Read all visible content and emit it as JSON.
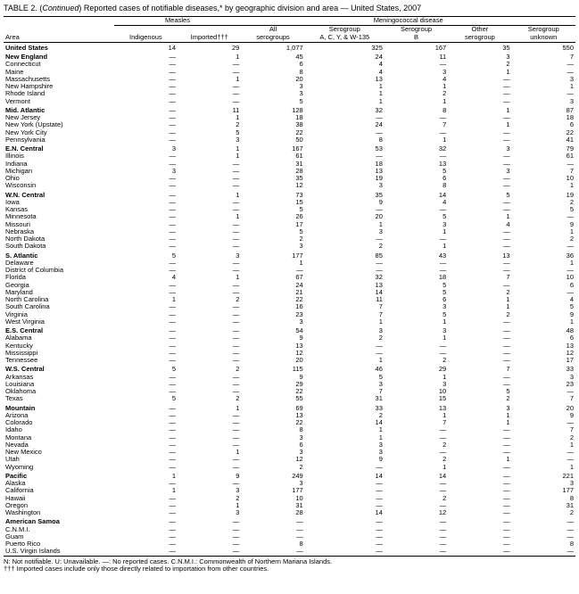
{
  "title_prefix": "TABLE 2. (",
  "title_cont": "Continued",
  "title_rest": ") Reported cases of notifiable diseases,* by geographic division and area — United States, 2007",
  "groups": {
    "measles": "Measles",
    "mening": "Meningococcal disease"
  },
  "headers": {
    "area": "Area",
    "indigenous": "Indigenous",
    "imported": "Imported†††",
    "all": "All\nserogroups",
    "seroA": "Serogroup\nA, C, Y, & W-135",
    "seroB": "Serogroup\nB",
    "other": "Other\nserogroup",
    "unknown": "Serogroup\nunknown"
  },
  "rows": [
    {
      "section": true,
      "area": "United States",
      "v": [
        "14",
        "29",
        "1,077",
        "325",
        "167",
        "35",
        "550"
      ]
    },
    {
      "section": true,
      "area": "New England",
      "v": [
        "—",
        "1",
        "45",
        "24",
        "11",
        "3",
        "7"
      ]
    },
    {
      "area": "Connecticut",
      "v": [
        "—",
        "—",
        "6",
        "4",
        "—",
        "2",
        "—"
      ]
    },
    {
      "area": "Maine",
      "v": [
        "—",
        "—",
        "8",
        "4",
        "3",
        "1",
        "—"
      ]
    },
    {
      "area": "Massachusetts",
      "v": [
        "—",
        "1",
        "20",
        "13",
        "4",
        "—",
        "3"
      ]
    },
    {
      "area": "New Hampshire",
      "v": [
        "—",
        "—",
        "3",
        "1",
        "1",
        "—",
        "1"
      ]
    },
    {
      "area": "Rhode Island",
      "v": [
        "—",
        "—",
        "3",
        "1",
        "2",
        "—",
        "—"
      ]
    },
    {
      "area": "Vermont",
      "v": [
        "—",
        "—",
        "5",
        "1",
        "1",
        "—",
        "3"
      ]
    },
    {
      "section": true,
      "area": "Mid. Atlantic",
      "v": [
        "—",
        "11",
        "128",
        "32",
        "8",
        "1",
        "87"
      ]
    },
    {
      "area": "New Jersey",
      "v": [
        "—",
        "1",
        "18",
        "—",
        "—",
        "—",
        "18"
      ]
    },
    {
      "area": "New York (Upstate)",
      "v": [
        "—",
        "2",
        "38",
        "24",
        "7",
        "1",
        "6"
      ]
    },
    {
      "area": "New York City",
      "v": [
        "—",
        "5",
        "22",
        "—",
        "—",
        "—",
        "22"
      ]
    },
    {
      "area": "Pennsylvania",
      "v": [
        "—",
        "3",
        "50",
        "8",
        "1",
        "—",
        "41"
      ]
    },
    {
      "section": true,
      "area": "E.N. Central",
      "v": [
        "3",
        "1",
        "167",
        "53",
        "32",
        "3",
        "79"
      ]
    },
    {
      "area": "Illinois",
      "v": [
        "—",
        "1",
        "61",
        "—",
        "—",
        "—",
        "61"
      ]
    },
    {
      "area": "Indiana",
      "v": [
        "—",
        "—",
        "31",
        "18",
        "13",
        "—",
        "—"
      ]
    },
    {
      "area": "Michigan",
      "v": [
        "3",
        "—",
        "28",
        "13",
        "5",
        "3",
        "7"
      ]
    },
    {
      "area": "Ohio",
      "v": [
        "—",
        "—",
        "35",
        "19",
        "6",
        "—",
        "10"
      ]
    },
    {
      "area": "Wisconsin",
      "v": [
        "—",
        "—",
        "12",
        "3",
        "8",
        "—",
        "1"
      ]
    },
    {
      "section": true,
      "area": "W.N. Central",
      "v": [
        "—",
        "1",
        "73",
        "35",
        "14",
        "5",
        "19"
      ]
    },
    {
      "area": "Iowa",
      "v": [
        "—",
        "—",
        "15",
        "9",
        "4",
        "—",
        "2"
      ]
    },
    {
      "area": "Kansas",
      "v": [
        "—",
        "—",
        "5",
        "—",
        "—",
        "—",
        "5"
      ]
    },
    {
      "area": "Minnesota",
      "v": [
        "—",
        "1",
        "26",
        "20",
        "5",
        "1",
        "—"
      ]
    },
    {
      "area": "Missouri",
      "v": [
        "—",
        "—",
        "17",
        "1",
        "3",
        "4",
        "9"
      ]
    },
    {
      "area": "Nebraska",
      "v": [
        "—",
        "—",
        "5",
        "3",
        "1",
        "—",
        "1"
      ]
    },
    {
      "area": "North Dakota",
      "v": [
        "—",
        "—",
        "2",
        "—",
        "—",
        "—",
        "2"
      ]
    },
    {
      "area": "South Dakota",
      "v": [
        "—",
        "—",
        "3",
        "2",
        "1",
        "—",
        "—"
      ]
    },
    {
      "section": true,
      "area": "S. Atlantic",
      "v": [
        "5",
        "3",
        "177",
        "85",
        "43",
        "13",
        "36"
      ]
    },
    {
      "area": "Delaware",
      "v": [
        "—",
        "—",
        "1",
        "—",
        "—",
        "—",
        "1"
      ]
    },
    {
      "area": "District of Columbia",
      "v": [
        "—",
        "—",
        "—",
        "—",
        "—",
        "—",
        "—"
      ]
    },
    {
      "area": "Florida",
      "v": [
        "4",
        "1",
        "67",
        "32",
        "18",
        "7",
        "10"
      ]
    },
    {
      "area": "Georgia",
      "v": [
        "—",
        "—",
        "24",
        "13",
        "5",
        "—",
        "6"
      ]
    },
    {
      "area": "Maryland",
      "v": [
        "—",
        "—",
        "21",
        "14",
        "5",
        "2",
        "—"
      ]
    },
    {
      "area": "North Carolina",
      "v": [
        "1",
        "2",
        "22",
        "11",
        "6",
        "1",
        "4"
      ]
    },
    {
      "area": "South Carolina",
      "v": [
        "—",
        "—",
        "16",
        "7",
        "3",
        "1",
        "5"
      ]
    },
    {
      "area": "Virginia",
      "v": [
        "—",
        "—",
        "23",
        "7",
        "5",
        "2",
        "9"
      ]
    },
    {
      "area": "West Virginia",
      "v": [
        "—",
        "—",
        "3",
        "1",
        "1",
        "—",
        "1"
      ]
    },
    {
      "section": true,
      "area": "E.S. Central",
      "v": [
        "—",
        "—",
        "54",
        "3",
        "3",
        "—",
        "48"
      ]
    },
    {
      "area": "Alabama",
      "v": [
        "—",
        "—",
        "9",
        "2",
        "1",
        "—",
        "6"
      ]
    },
    {
      "area": "Kentucky",
      "v": [
        "—",
        "—",
        "13",
        "—",
        "—",
        "—",
        "13"
      ]
    },
    {
      "area": "Mississippi",
      "v": [
        "—",
        "—",
        "12",
        "—",
        "—",
        "—",
        "12"
      ]
    },
    {
      "area": "Tennessee",
      "v": [
        "—",
        "—",
        "20",
        "1",
        "2",
        "—",
        "17"
      ]
    },
    {
      "section": true,
      "area": "W.S. Central",
      "v": [
        "5",
        "2",
        "115",
        "46",
        "29",
        "7",
        "33"
      ]
    },
    {
      "area": "Arkansas",
      "v": [
        "—",
        "—",
        "9",
        "5",
        "1",
        "—",
        "3"
      ]
    },
    {
      "area": "Louisiana",
      "v": [
        "—",
        "—",
        "29",
        "3",
        "3",
        "—",
        "23"
      ]
    },
    {
      "area": "Oklahoma",
      "v": [
        "—",
        "—",
        "22",
        "7",
        "10",
        "5",
        "—"
      ]
    },
    {
      "area": "Texas",
      "v": [
        "5",
        "2",
        "55",
        "31",
        "15",
        "2",
        "7"
      ]
    },
    {
      "section": true,
      "area": "Mountain",
      "v": [
        "—",
        "1",
        "69",
        "33",
        "13",
        "3",
        "20"
      ]
    },
    {
      "area": "Arizona",
      "v": [
        "—",
        "—",
        "13",
        "2",
        "1",
        "1",
        "9"
      ]
    },
    {
      "area": "Colorado",
      "v": [
        "—",
        "—",
        "22",
        "14",
        "7",
        "1",
        "—"
      ]
    },
    {
      "area": "Idaho",
      "v": [
        "—",
        "—",
        "8",
        "1",
        "—",
        "—",
        "7"
      ]
    },
    {
      "area": "Montana",
      "v": [
        "—",
        "—",
        "3",
        "1",
        "—",
        "—",
        "2"
      ]
    },
    {
      "area": "Nevada",
      "v": [
        "—",
        "—",
        "6",
        "3",
        "2",
        "—",
        "1"
      ]
    },
    {
      "area": "New Mexico",
      "v": [
        "—",
        "1",
        "3",
        "3",
        "—",
        "—",
        "—"
      ]
    },
    {
      "area": "Utah",
      "v": [
        "—",
        "—",
        "12",
        "9",
        "2",
        "1",
        "—"
      ]
    },
    {
      "area": "Wyoming",
      "v": [
        "—",
        "—",
        "2",
        "—",
        "1",
        "—",
        "1"
      ]
    },
    {
      "section": true,
      "area": "Pacific",
      "v": [
        "1",
        "9",
        "249",
        "14",
        "14",
        "—",
        "221"
      ]
    },
    {
      "area": "Alaska",
      "v": [
        "—",
        "—",
        "3",
        "—",
        "—",
        "—",
        "3"
      ]
    },
    {
      "area": "California",
      "v": [
        "1",
        "3",
        "177",
        "—",
        "—",
        "—",
        "177"
      ]
    },
    {
      "area": "Hawaii",
      "v": [
        "—",
        "2",
        "10",
        "—",
        "2",
        "—",
        "8"
      ]
    },
    {
      "area": "Oregon",
      "v": [
        "—",
        "1",
        "31",
        "—",
        "—",
        "—",
        "31"
      ]
    },
    {
      "area": "Washington",
      "v": [
        "—",
        "3",
        "28",
        "14",
        "12",
        "—",
        "2"
      ]
    },
    {
      "section": true,
      "area": "American Samoa",
      "v": [
        "—",
        "—",
        "—",
        "—",
        "—",
        "—",
        "—"
      ]
    },
    {
      "area": "C.N.M.I.",
      "v": [
        "—",
        "—",
        "—",
        "—",
        "—",
        "—",
        "—"
      ]
    },
    {
      "area": "Guam",
      "v": [
        "—",
        "—",
        "—",
        "—",
        "—",
        "—",
        "—"
      ]
    },
    {
      "area": "Puerto Rico",
      "v": [
        "—",
        "—",
        "8",
        "—",
        "—",
        "—",
        "8"
      ]
    },
    {
      "area": "U.S. Virgin Islands",
      "v": [
        "—",
        "—",
        "—",
        "—",
        "—",
        "—",
        "—"
      ]
    }
  ],
  "footnotes": {
    "l1": "N: Not notifiable.     U: Unavailable.     —: No reported cases.     C.N.M.I.: Commonwealth of Northern Mariana Islands.",
    "l2": "††† Imported cases include only those directly related to importation from other countries."
  }
}
